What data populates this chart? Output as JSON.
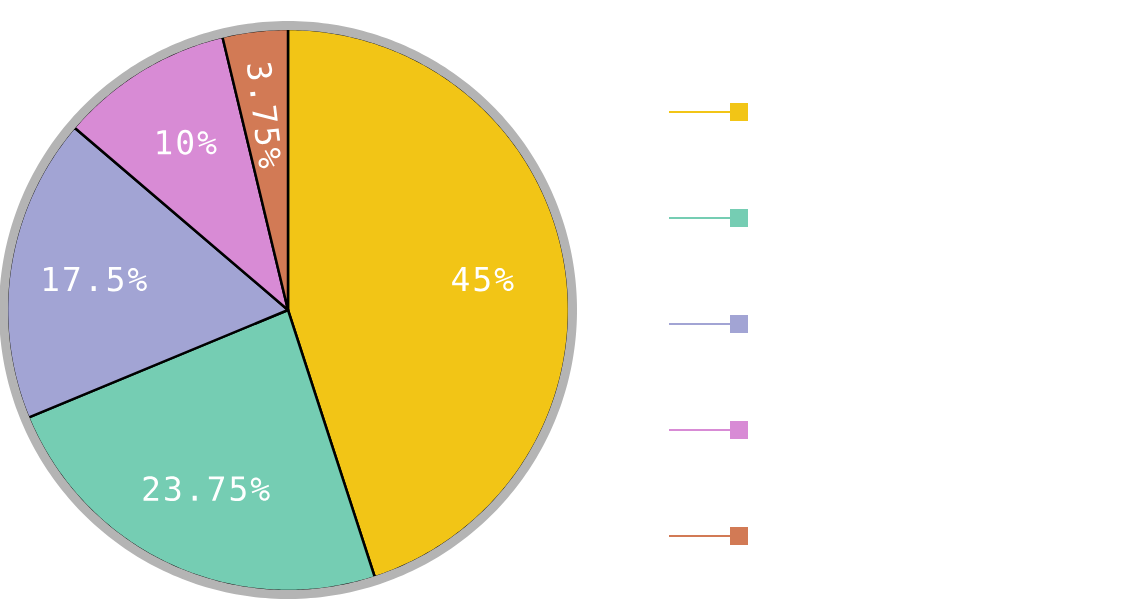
{
  "chart_data": {
    "type": "pie",
    "categories": [
      null,
      null,
      null,
      null,
      null
    ],
    "values": [
      45,
      23.75,
      17.5,
      10,
      3.75
    ],
    "colors": [
      "#f2c516",
      "#75cdb3",
      "#a2a4d4",
      "#d88bd5",
      "#d27a55"
    ],
    "value_labels": [
      "45%",
      "23.75%",
      "17.5%",
      "10%",
      "3.75%"
    ]
  }
}
